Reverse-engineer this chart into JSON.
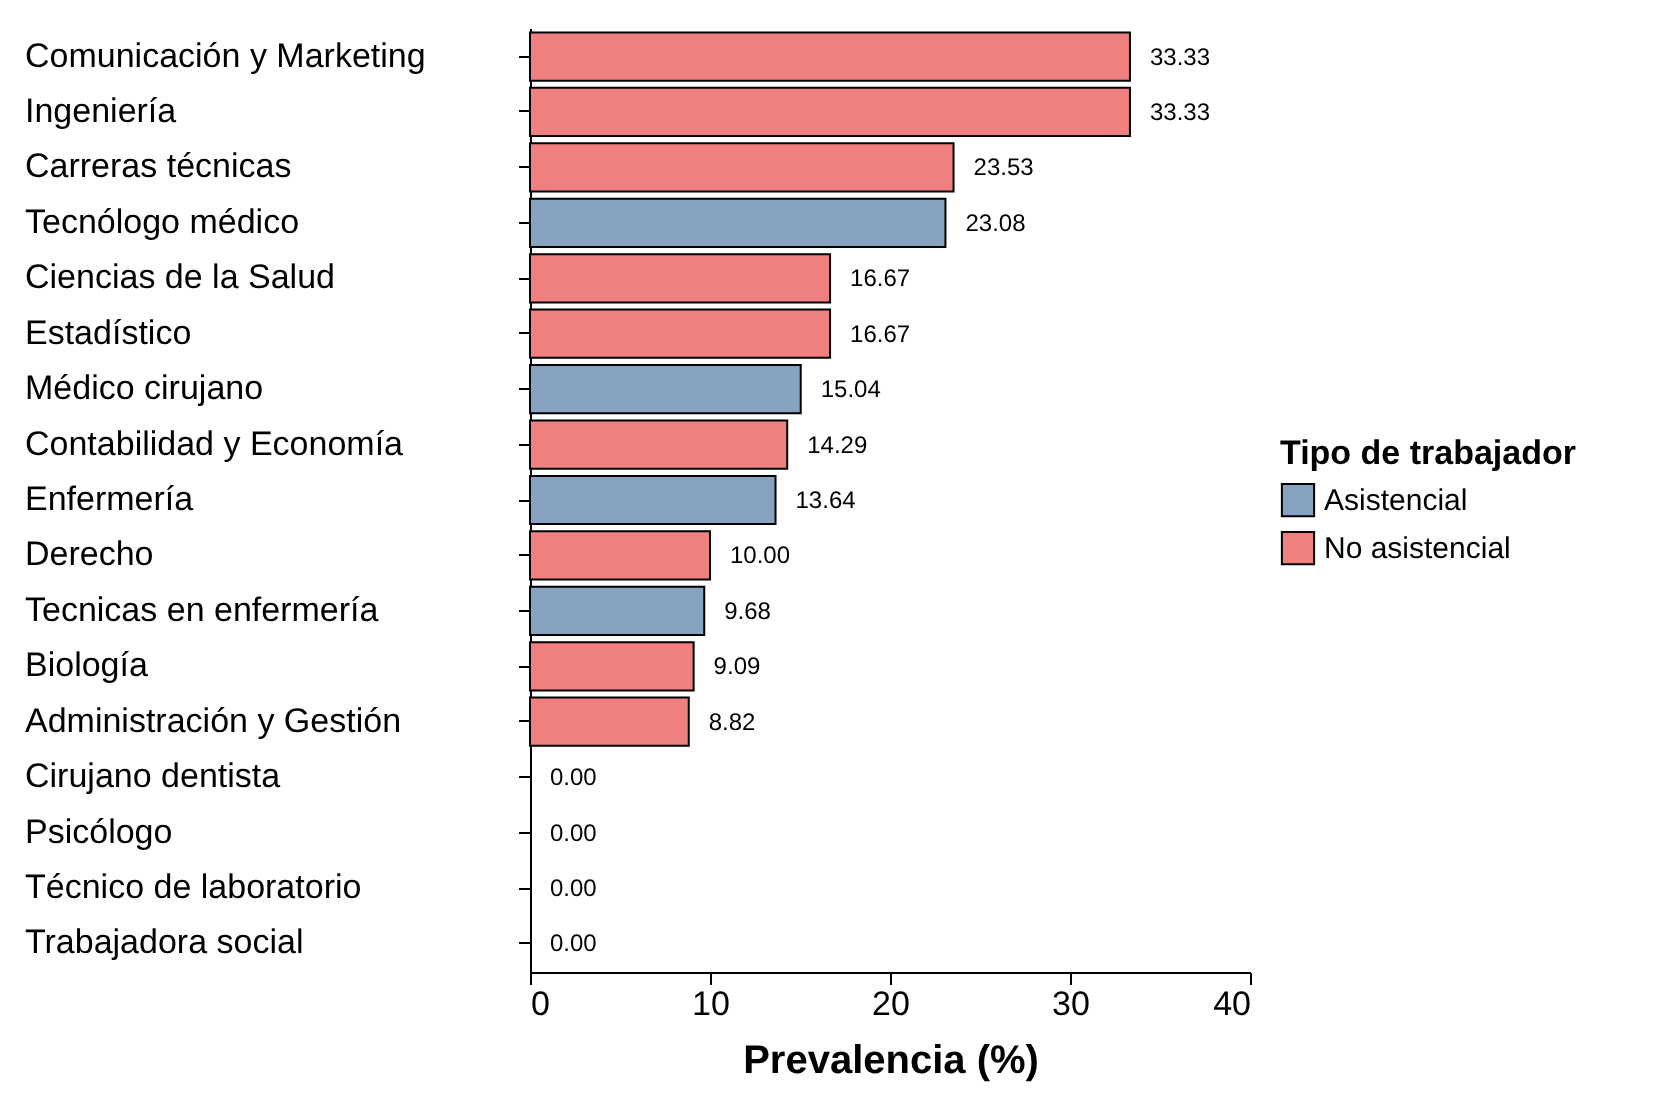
{
  "chart_data": {
    "type": "bar",
    "orientation": "horizontal",
    "categories": [
      "Comunicación y Marketing",
      "Ingeniería",
      "Carreras técnicas",
      "Tecnólogo médico",
      "Ciencias de la Salud",
      "Estadístico",
      "Médico cirujano",
      "Contabilidad y Economía",
      "Enfermería",
      "Derecho",
      "Tecnicas en enfermería",
      "Biología",
      "Administración y Gestión",
      "Cirujano dentista",
      "Psicólogo",
      "Técnico de laboratorio",
      "Trabajadora social"
    ],
    "series": [
      {
        "name": "Asistencial",
        "color": "#87a2bf",
        "values": [
          null,
          null,
          null,
          23.08,
          null,
          null,
          15.04,
          null,
          13.64,
          null,
          9.68,
          null,
          null,
          0,
          0,
          0,
          0
        ],
        "value_labels": [
          null,
          null,
          null,
          "23.08",
          null,
          null,
          "15.04",
          null,
          "13.64",
          null,
          "9.68",
          null,
          null,
          "0.00",
          "0.00",
          "0.00",
          "0.00"
        ]
      },
      {
        "name": "No asistencial",
        "color": "#f08080",
        "values": [
          33.33,
          33.33,
          23.53,
          null,
          16.67,
          16.67,
          null,
          14.29,
          null,
          10.0,
          null,
          9.09,
          8.82,
          null,
          null,
          null,
          null
        ],
        "value_labels": [
          "33.33",
          "33.33",
          "23.53",
          null,
          "16.67",
          "16.67",
          null,
          "14.29",
          null,
          "10.00",
          null,
          "9.09",
          "8.82",
          null,
          null,
          null,
          null
        ]
      }
    ],
    "xlabel": "Prevalencia (%)",
    "legend_title": "Tipo de trabajador",
    "legend": "right",
    "grid": false,
    "xlim": [
      0,
      40
    ],
    "xticks": [
      0,
      10,
      20,
      30,
      40
    ]
  }
}
